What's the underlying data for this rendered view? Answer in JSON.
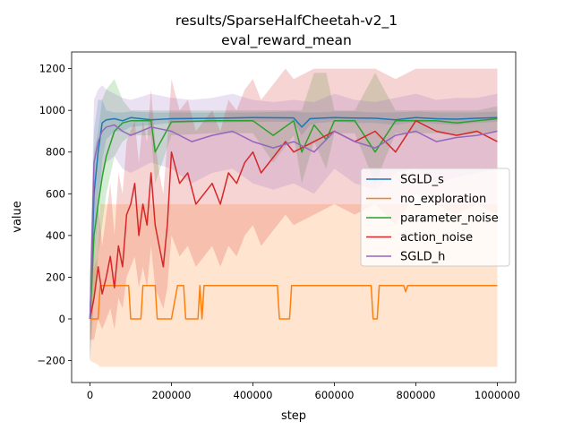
{
  "chart_data": {
    "type": "line",
    "title_line1": "results/SparseHalfCheetah-v2_1",
    "title_line2": "eval_reward_mean",
    "xlabel": "step",
    "ylabel": "value",
    "xlim": [
      -45000,
      1045000
    ],
    "ylim": [
      -305,
      1280
    ],
    "xticks": [
      0,
      200000,
      400000,
      600000,
      800000,
      1000000
    ],
    "xtick_labels": [
      "0",
      "200000",
      "400000",
      "600000",
      "800000",
      "1000000"
    ],
    "yticks": [
      -200,
      0,
      200,
      400,
      600,
      800,
      1000,
      1200
    ],
    "ytick_labels": [
      "−200",
      "0",
      "200",
      "400",
      "600",
      "800",
      "1000",
      "1200"
    ],
    "legend_position": "center-right",
    "series": [
      {
        "name": "SGLD_s",
        "color": "#1f77b4",
        "x": [
          0,
          10000,
          20000,
          30000,
          40000,
          60000,
          80000,
          100000,
          150000,
          200000,
          300000,
          400000,
          500000,
          520000,
          540000,
          560000,
          600000,
          650000,
          700000,
          750000,
          800000,
          850000,
          900000,
          950000,
          1000000
        ],
        "y": [
          0,
          600,
          800,
          940,
          955,
          960,
          950,
          965,
          955,
          960,
          962,
          965,
          964,
          920,
          960,
          962,
          965,
          963,
          962,
          955,
          965,
          960,
          958,
          962,
          965
        ],
        "band_lo": [
          -200,
          300,
          500,
          760,
          860,
          900,
          900,
          920,
          930,
          940,
          940,
          945,
          945,
          880,
          930,
          940,
          945,
          940,
          940,
          930,
          945,
          935,
          930,
          940,
          945
        ],
        "band_hi": [
          200,
          900,
          1050,
          1050,
          1000,
          990,
          990,
          995,
          990,
          990,
          990,
          990,
          995,
          990,
          990,
          990,
          995,
          995,
          990,
          990,
          995,
          990,
          990,
          990,
          995
        ]
      },
      {
        "name": "no_exploration",
        "color": "#ff7f0e",
        "x": [
          0,
          20000,
          25000,
          95000,
          100000,
          125000,
          130000,
          160000,
          165000,
          200000,
          215000,
          230000,
          235000,
          265000,
          270000,
          275000,
          280000,
          460000,
          465000,
          490000,
          495000,
          690000,
          695000,
          705000,
          710000,
          770000,
          775000,
          780000,
          1000000
        ],
        "y": [
          0,
          0,
          160,
          160,
          0,
          0,
          160,
          160,
          0,
          0,
          160,
          160,
          0,
          0,
          160,
          0,
          160,
          160,
          0,
          0,
          160,
          160,
          0,
          0,
          160,
          160,
          130,
          160,
          160
        ],
        "band_lo": [
          -200,
          -220,
          -230,
          -230,
          -230,
          -230,
          -230,
          -230,
          -230,
          -230,
          -230,
          -230,
          -230,
          -230,
          -230,
          -230,
          -230,
          -230,
          -230,
          -230,
          -230,
          -230,
          -230,
          -230,
          -230,
          -230,
          -230,
          -230,
          -230
        ],
        "band_hi": [
          200,
          300,
          550,
          550,
          550,
          550,
          550,
          550,
          550,
          550,
          550,
          550,
          550,
          550,
          550,
          550,
          550,
          550,
          550,
          550,
          550,
          550,
          550,
          550,
          550,
          550,
          550,
          550,
          550
        ]
      },
      {
        "name": "parameter_noise",
        "color": "#2ca02c",
        "x": [
          0,
          10000,
          20000,
          30000,
          40000,
          60000,
          80000,
          100000,
          150000,
          160000,
          200000,
          300000,
          400000,
          450000,
          500000,
          520000,
          550000,
          580000,
          600000,
          650000,
          700000,
          750000,
          800000,
          850000,
          900000,
          950000,
          1000000
        ],
        "y": [
          0,
          400,
          550,
          680,
          780,
          900,
          940,
          950,
          950,
          800,
          945,
          950,
          950,
          880,
          950,
          800,
          930,
          860,
          950,
          950,
          800,
          950,
          950,
          950,
          940,
          950,
          960
        ],
        "band_lo": [
          -200,
          100,
          300,
          450,
          600,
          780,
          850,
          880,
          880,
          650,
          880,
          890,
          890,
          750,
          880,
          650,
          850,
          720,
          890,
          890,
          650,
          890,
          890,
          890,
          880,
          890,
          900
        ],
        "band_hi": [
          200,
          800,
          900,
          1050,
          1100,
          1150,
          1050,
          1000,
          1000,
          1000,
          1000,
          1000,
          1000,
          1000,
          1000,
          1000,
          1180,
          1180,
          1000,
          1000,
          1180,
          1000,
          1000,
          1000,
          1000,
          1000,
          1020
        ]
      },
      {
        "name": "action_noise",
        "color": "#d62728",
        "x": [
          0,
          10000,
          20000,
          30000,
          40000,
          50000,
          60000,
          70000,
          80000,
          90000,
          100000,
          110000,
          120000,
          130000,
          140000,
          150000,
          160000,
          170000,
          180000,
          190000,
          200000,
          220000,
          240000,
          260000,
          280000,
          300000,
          320000,
          340000,
          360000,
          380000,
          400000,
          420000,
          440000,
          460000,
          480000,
          500000,
          550000,
          600000,
          650000,
          700000,
          750000,
          800000,
          850000,
          900000,
          950000,
          1000000
        ],
        "y": [
          0,
          100,
          250,
          120,
          200,
          300,
          150,
          350,
          250,
          500,
          550,
          650,
          400,
          550,
          450,
          700,
          450,
          350,
          250,
          450,
          800,
          650,
          700,
          550,
          600,
          650,
          550,
          700,
          650,
          750,
          800,
          700,
          750,
          800,
          850,
          800,
          850,
          900,
          850,
          900,
          800,
          950,
          900,
          880,
          900,
          850
        ],
        "band_lo": [
          -100,
          -100,
          0,
          -50,
          0,
          50,
          -50,
          100,
          50,
          200,
          250,
          300,
          150,
          250,
          150,
          350,
          150,
          100,
          50,
          150,
          400,
          300,
          350,
          250,
          300,
          350,
          250,
          350,
          300,
          400,
          450,
          350,
          400,
          450,
          500,
          450,
          500,
          550,
          500,
          550,
          450,
          600,
          550,
          500,
          550,
          500
        ],
        "band_hi": [
          150,
          300,
          550,
          350,
          500,
          650,
          400,
          700,
          600,
          850,
          900,
          950,
          750,
          950,
          850,
          1100,
          850,
          700,
          600,
          850,
          1150,
          1000,
          1050,
          900,
          950,
          1000,
          900,
          1050,
          1000,
          1100,
          1150,
          1050,
          1100,
          1150,
          1200,
          1150,
          1200,
          1200,
          1200,
          1200,
          1150,
          1200,
          1200,
          1200,
          1200,
          1200
        ]
      },
      {
        "name": "SGLD_h",
        "color": "#9467bd",
        "x": [
          0,
          10000,
          20000,
          30000,
          40000,
          60000,
          80000,
          100000,
          150000,
          200000,
          250000,
          300000,
          350000,
          400000,
          450000,
          500000,
          550000,
          600000,
          650000,
          700000,
          750000,
          800000,
          850000,
          900000,
          950000,
          1000000
        ],
        "y": [
          0,
          750,
          850,
          900,
          920,
          930,
          900,
          880,
          920,
          900,
          850,
          880,
          900,
          850,
          820,
          850,
          800,
          900,
          850,
          820,
          880,
          900,
          850,
          870,
          880,
          900
        ],
        "band_lo": [
          -200,
          400,
          600,
          700,
          750,
          780,
          720,
          700,
          750,
          720,
          650,
          700,
          720,
          650,
          620,
          650,
          600,
          720,
          650,
          620,
          700,
          720,
          650,
          680,
          700,
          720
        ],
        "band_hi": [
          200,
          1050,
          1100,
          1120,
          1100,
          1080,
          1060,
          1050,
          1080,
          1060,
          1050,
          1060,
          1080,
          1050,
          1040,
          1050,
          1040,
          1080,
          1050,
          1040,
          1060,
          1080,
          1050,
          1060,
          1060,
          1080
        ]
      }
    ]
  }
}
